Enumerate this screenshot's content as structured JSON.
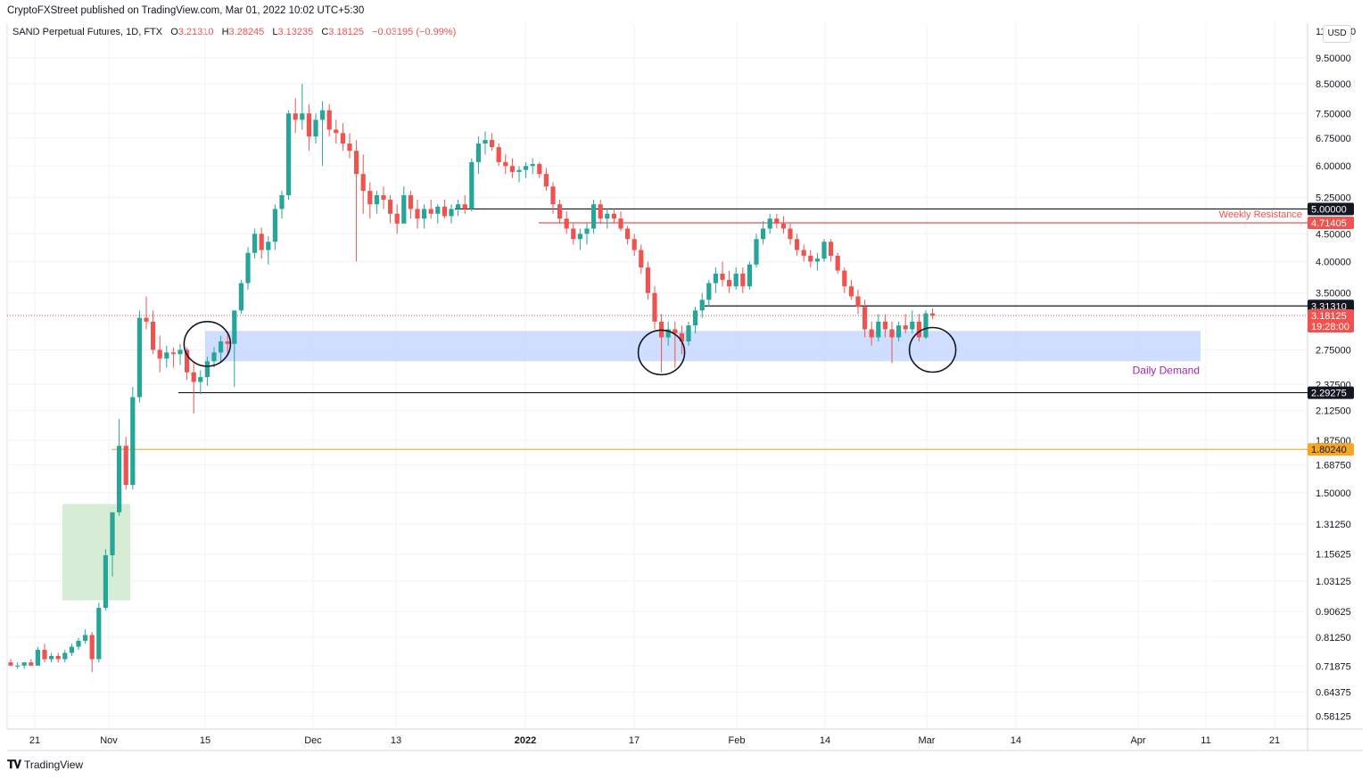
{
  "header": {
    "publisher": "CryptoFXStreet published on TradingView.com, Mar 01, 2022 10:02 UTC+5:30",
    "symbol": "SAND Perpetual Futures, 1D, FTX",
    "open_label": "O",
    "open": "3.21310",
    "high_label": "H",
    "high": "3.28245",
    "low_label": "L",
    "low": "3.13235",
    "close_label": "C",
    "close": "3.18125",
    "change": "−0.03195 (−0.99%)",
    "currency": "USD"
  },
  "footer": {
    "logo": "TradingView"
  },
  "colors": {
    "up": "#26a69a",
    "down": "#ef5350",
    "resistance": "#ef5350",
    "support": "#131722",
    "orange": "#f5a623",
    "demand_zone": "#c7d7ff",
    "demand_label": "#9c27b0",
    "green_zone": "#d6ecd4",
    "axis_text": "#131722"
  },
  "chart_data": {
    "type": "candlestick",
    "y_scale": "log",
    "ylim": [
      0.55,
      11.0
    ],
    "x_tick_labels": [
      "21",
      "Nov",
      "15",
      "Dec",
      "13",
      "2022",
      "17",
      "Feb",
      "14",
      "Mar",
      "14",
      "Apr",
      "11",
      "21"
    ],
    "y_tick_labels": [
      "9.50000",
      "8.50000",
      "7.50000",
      "6.75000",
      "6.00000",
      "5.25000",
      "4.50000",
      "4.00000",
      "3.50000",
      "2.75000",
      "2.37500",
      "2.12500",
      "1.87500",
      "1.68750",
      "1.50000",
      "1.31250",
      "1.15625",
      "1.03125",
      "0.90625",
      "0.81250",
      "0.71875",
      "0.64375",
      "0.58125"
    ],
    "y_tick_values": [
      9.5,
      8.5,
      7.5,
      6.75,
      6.0,
      5.25,
      4.5,
      4.0,
      3.5,
      2.75,
      2.375,
      2.125,
      1.875,
      1.6875,
      1.5,
      1.3125,
      1.15625,
      1.03125,
      0.90625,
      0.8125,
      0.71875,
      0.64375,
      0.58125
    ],
    "top_partial_tick": "11.00000",
    "levels": [
      {
        "value": 5.0,
        "label": "5.00000",
        "style": "support"
      },
      {
        "value": 4.71405,
        "label": "4.71405",
        "style": "resistance",
        "annotation": "Weekly Resistance"
      },
      {
        "value": 3.3131,
        "label": "3.31310",
        "style": "support"
      },
      {
        "value": 2.29275,
        "label": "2.29275",
        "style": "support"
      },
      {
        "value": 1.8024,
        "label": "1.80240",
        "style": "orange"
      }
    ],
    "last_price": {
      "value": 3.18125,
      "label": "3.18125",
      "countdown": "19:28:00"
    },
    "zones": [
      {
        "name": "Daily Demand",
        "low": 2.62,
        "high": 2.98
      },
      {
        "name": "",
        "low": 0.95,
        "high": 1.43
      }
    ],
    "annotation_circles": [
      {
        "date_index": 29,
        "price": 2.82
      },
      {
        "date_index": 96,
        "price": 2.72
      },
      {
        "date_index": 136,
        "price": 2.75
      }
    ],
    "candles": [
      [
        0.73,
        0.74,
        0.72,
        0.72
      ],
      [
        0.72,
        0.73,
        0.71,
        0.72
      ],
      [
        0.72,
        0.73,
        0.71,
        0.73
      ],
      [
        0.73,
        0.74,
        0.72,
        0.72
      ],
      [
        0.72,
        0.78,
        0.72,
        0.77
      ],
      [
        0.77,
        0.79,
        0.73,
        0.74
      ],
      [
        0.74,
        0.76,
        0.73,
        0.75
      ],
      [
        0.75,
        0.76,
        0.73,
        0.74
      ],
      [
        0.74,
        0.77,
        0.73,
        0.76
      ],
      [
        0.76,
        0.79,
        0.75,
        0.78
      ],
      [
        0.78,
        0.81,
        0.77,
        0.8
      ],
      [
        0.8,
        0.84,
        0.79,
        0.82
      ],
      [
        0.82,
        0.83,
        0.7,
        0.74
      ],
      [
        0.74,
        0.94,
        0.73,
        0.92
      ],
      [
        0.92,
        1.18,
        0.91,
        1.15
      ],
      [
        1.15,
        1.38,
        1.05,
        1.38
      ],
      [
        1.38,
        2.05,
        1.36,
        1.83
      ],
      [
        1.83,
        1.9,
        1.52,
        1.55
      ],
      [
        1.55,
        2.35,
        1.52,
        2.25
      ],
      [
        2.25,
        3.25,
        2.2,
        3.15
      ],
      [
        3.15,
        3.45,
        3.0,
        3.1
      ],
      [
        3.1,
        3.25,
        2.7,
        2.75
      ],
      [
        2.75,
        2.92,
        2.5,
        2.65
      ],
      [
        2.65,
        2.8,
        2.55,
        2.72
      ],
      [
        2.72,
        2.78,
        2.55,
        2.7
      ],
      [
        2.7,
        2.82,
        2.58,
        2.75
      ],
      [
        2.75,
        2.78,
        2.42,
        2.5
      ],
      [
        2.5,
        2.6,
        2.1,
        2.4
      ],
      [
        2.4,
        2.52,
        2.28,
        2.45
      ],
      [
        2.45,
        2.67,
        2.36,
        2.62
      ],
      [
        2.62,
        2.78,
        2.55,
        2.72
      ],
      [
        2.72,
        2.92,
        2.6,
        2.85
      ],
      [
        2.85,
        2.95,
        2.7,
        2.82
      ],
      [
        2.82,
        3.25,
        2.35,
        3.25
      ],
      [
        3.25,
        3.7,
        3.2,
        3.65
      ],
      [
        3.65,
        4.25,
        3.55,
        4.15
      ],
      [
        4.15,
        4.6,
        4.05,
        4.5
      ],
      [
        4.5,
        4.62,
        4.05,
        4.2
      ],
      [
        4.2,
        4.45,
        3.95,
        4.35
      ],
      [
        4.35,
        5.1,
        4.2,
        5.0
      ],
      [
        5.0,
        5.4,
        4.8,
        5.3
      ],
      [
        5.3,
        7.6,
        5.2,
        7.5
      ],
      [
        7.5,
        8.0,
        6.9,
        7.3
      ],
      [
        7.3,
        8.5,
        7.0,
        7.5
      ],
      [
        7.5,
        7.8,
        6.4,
        6.8
      ],
      [
        6.8,
        7.5,
        6.6,
        7.3
      ],
      [
        7.3,
        7.9,
        6.0,
        7.6
      ],
      [
        7.6,
        7.8,
        6.8,
        7.0
      ],
      [
        7.0,
        7.3,
        6.6,
        6.9
      ],
      [
        6.9,
        7.2,
        6.4,
        6.6
      ],
      [
        6.6,
        6.9,
        6.2,
        6.4
      ],
      [
        6.4,
        6.7,
        4.0,
        5.8
      ],
      [
        5.8,
        6.3,
        4.9,
        5.4
      ],
      [
        5.4,
        5.6,
        4.8,
        5.1
      ],
      [
        5.1,
        5.4,
        4.9,
        5.3
      ],
      [
        5.3,
        5.5,
        5.0,
        5.2
      ],
      [
        5.2,
        5.3,
        4.7,
        4.9
      ],
      [
        4.9,
        5.1,
        4.5,
        4.7
      ],
      [
        4.7,
        5.5,
        4.7,
        5.3
      ],
      [
        5.3,
        5.4,
        4.8,
        5.0
      ],
      [
        5.0,
        5.2,
        4.6,
        4.8
      ],
      [
        4.8,
        5.1,
        4.6,
        5.0
      ],
      [
        5.0,
        5.2,
        4.8,
        4.9
      ],
      [
        4.9,
        5.1,
        4.7,
        5.05
      ],
      [
        5.05,
        5.2,
        4.8,
        4.85
      ],
      [
        4.85,
        5.1,
        4.7,
        5.0
      ],
      [
        5.0,
        5.2,
        4.85,
        5.1
      ],
      [
        5.1,
        5.3,
        4.9,
        5.0
      ],
      [
        5.0,
        6.2,
        4.95,
        6.1
      ],
      [
        6.1,
        6.8,
        5.8,
        6.6
      ],
      [
        6.6,
        6.95,
        6.3,
        6.7
      ],
      [
        6.7,
        6.9,
        6.4,
        6.5
      ],
      [
        6.5,
        6.6,
        6.0,
        6.1
      ],
      [
        6.1,
        6.3,
        5.8,
        6.0
      ],
      [
        6.0,
        6.2,
        5.7,
        5.85
      ],
      [
        5.85,
        6.0,
        5.6,
        5.9
      ],
      [
        5.9,
        6.1,
        5.7,
        6.0
      ],
      [
        6.0,
        6.2,
        5.8,
        6.05
      ],
      [
        6.05,
        6.1,
        5.7,
        5.8
      ],
      [
        5.8,
        5.95,
        5.4,
        5.5
      ],
      [
        5.5,
        5.6,
        4.9,
        5.1
      ],
      [
        5.1,
        5.2,
        4.7,
        4.8
      ],
      [
        4.8,
        4.95,
        4.5,
        4.6
      ],
      [
        4.6,
        4.7,
        4.3,
        4.4
      ],
      [
        4.4,
        4.6,
        4.2,
        4.5
      ],
      [
        4.5,
        4.7,
        4.3,
        4.6
      ],
      [
        4.6,
        5.2,
        4.5,
        5.1
      ],
      [
        5.1,
        5.2,
        4.7,
        4.8
      ],
      [
        4.8,
        5.0,
        4.6,
        4.9
      ],
      [
        4.9,
        5.0,
        4.7,
        4.8
      ],
      [
        4.8,
        4.95,
        4.55,
        4.6
      ],
      [
        4.6,
        4.65,
        4.3,
        4.4
      ],
      [
        4.4,
        4.5,
        4.1,
        4.2
      ],
      [
        4.2,
        4.3,
        3.8,
        3.9
      ],
      [
        3.9,
        4.0,
        3.4,
        3.5
      ],
      [
        3.5,
        3.6,
        3.0,
        3.1
      ],
      [
        3.1,
        3.2,
        2.5,
        2.9
      ],
      [
        2.9,
        3.1,
        2.8,
        3.0
      ],
      [
        3.0,
        3.1,
        2.55,
        2.95
      ],
      [
        2.95,
        3.05,
        2.7,
        2.85
      ],
      [
        2.85,
        3.1,
        2.8,
        3.05
      ],
      [
        3.05,
        3.3,
        2.95,
        3.25
      ],
      [
        3.25,
        3.5,
        3.15,
        3.4
      ],
      [
        3.4,
        3.7,
        3.3,
        3.65
      ],
      [
        3.65,
        3.9,
        3.5,
        3.8
      ],
      [
        3.8,
        4.0,
        3.6,
        3.7
      ],
      [
        3.7,
        3.85,
        3.5,
        3.6
      ],
      [
        3.6,
        3.9,
        3.55,
        3.8
      ],
      [
        3.8,
        3.9,
        3.5,
        3.6
      ],
      [
        3.6,
        4.0,
        3.55,
        3.95
      ],
      [
        3.95,
        4.5,
        3.9,
        4.4
      ],
      [
        4.4,
        4.75,
        4.3,
        4.6
      ],
      [
        4.6,
        4.9,
        4.5,
        4.8
      ],
      [
        4.8,
        4.9,
        4.6,
        4.7
      ],
      [
        4.7,
        4.85,
        4.5,
        4.6
      ],
      [
        4.6,
        4.7,
        4.3,
        4.4
      ],
      [
        4.4,
        4.5,
        4.1,
        4.2
      ],
      [
        4.2,
        4.3,
        4.0,
        4.1
      ],
      [
        4.1,
        4.2,
        3.9,
        4.0
      ],
      [
        4.0,
        4.15,
        3.85,
        4.05
      ],
      [
        4.05,
        4.4,
        4.0,
        4.35
      ],
      [
        4.35,
        4.4,
        4.0,
        4.1
      ],
      [
        4.1,
        4.15,
        3.8,
        3.85
      ],
      [
        3.85,
        3.9,
        3.5,
        3.6
      ],
      [
        3.6,
        3.7,
        3.4,
        3.45
      ],
      [
        3.45,
        3.55,
        3.2,
        3.3
      ],
      [
        3.3,
        3.4,
        2.9,
        3.0
      ],
      [
        3.0,
        3.1,
        2.8,
        2.9
      ],
      [
        2.9,
        3.2,
        2.85,
        3.1
      ],
      [
        3.1,
        3.2,
        2.9,
        3.0
      ],
      [
        3.0,
        3.1,
        2.6,
        2.9
      ],
      [
        2.9,
        3.1,
        2.85,
        3.05
      ],
      [
        3.05,
        3.2,
        2.95,
        3.0
      ],
      [
        3.0,
        3.25,
        2.95,
        3.1
      ],
      [
        3.1,
        3.2,
        2.85,
        2.9
      ],
      [
        2.9,
        3.25,
        2.88,
        3.21
      ],
      [
        3.21,
        3.28,
        3.13,
        3.18
      ]
    ]
  }
}
